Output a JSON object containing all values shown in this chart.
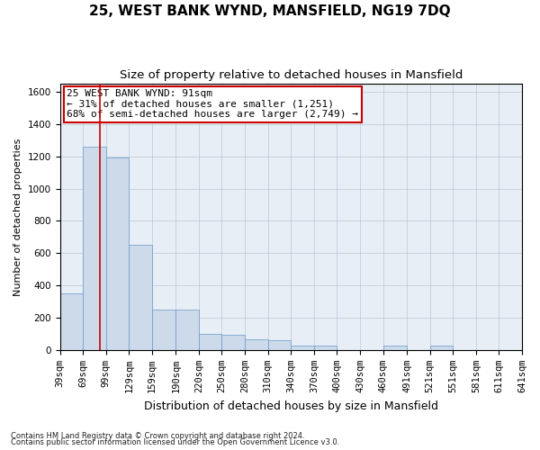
{
  "title": "25, WEST BANK WYND, MANSFIELD, NG19 7DQ",
  "subtitle": "Size of property relative to detached houses in Mansfield",
  "xlabel": "Distribution of detached houses by size in Mansfield",
  "ylabel": "Number of detached properties",
  "footnote1": "Contains HM Land Registry data © Crown copyright and database right 2024.",
  "footnote2": "Contains public sector information licensed under the Open Government Licence v3.0.",
  "annotation_line1": "25 WEST BANK WYND: 91sqm",
  "annotation_line2": "← 31% of detached houses are smaller (1,251)",
  "annotation_line3": "68% of semi-detached houses are larger (2,749) →",
  "bin_edges": [
    39,
    69,
    99,
    129,
    159,
    190,
    220,
    250,
    280,
    310,
    340,
    370,
    400,
    430,
    460,
    491,
    521,
    551,
    581,
    611,
    641
  ],
  "bar_heights": [
    350,
    1260,
    1195,
    650,
    250,
    248,
    100,
    95,
    65,
    60,
    30,
    28,
    0,
    0,
    28,
    0,
    27,
    0,
    0,
    0
  ],
  "bar_color": "#cddaea",
  "bar_edge_color": "#6699cc",
  "bg_color": "#e8eef5",
  "highlight_color": "#cc0000",
  "ylim": [
    0,
    1650
  ],
  "yticks": [
    0,
    200,
    400,
    600,
    800,
    1000,
    1200,
    1400,
    1600
  ],
  "vline_x": 91,
  "title_fontsize": 11,
  "subtitle_fontsize": 9.5,
  "axis_label_fontsize": 8,
  "tick_fontsize": 7.5,
  "annotation_fontsize": 8,
  "footnote_fontsize": 6
}
